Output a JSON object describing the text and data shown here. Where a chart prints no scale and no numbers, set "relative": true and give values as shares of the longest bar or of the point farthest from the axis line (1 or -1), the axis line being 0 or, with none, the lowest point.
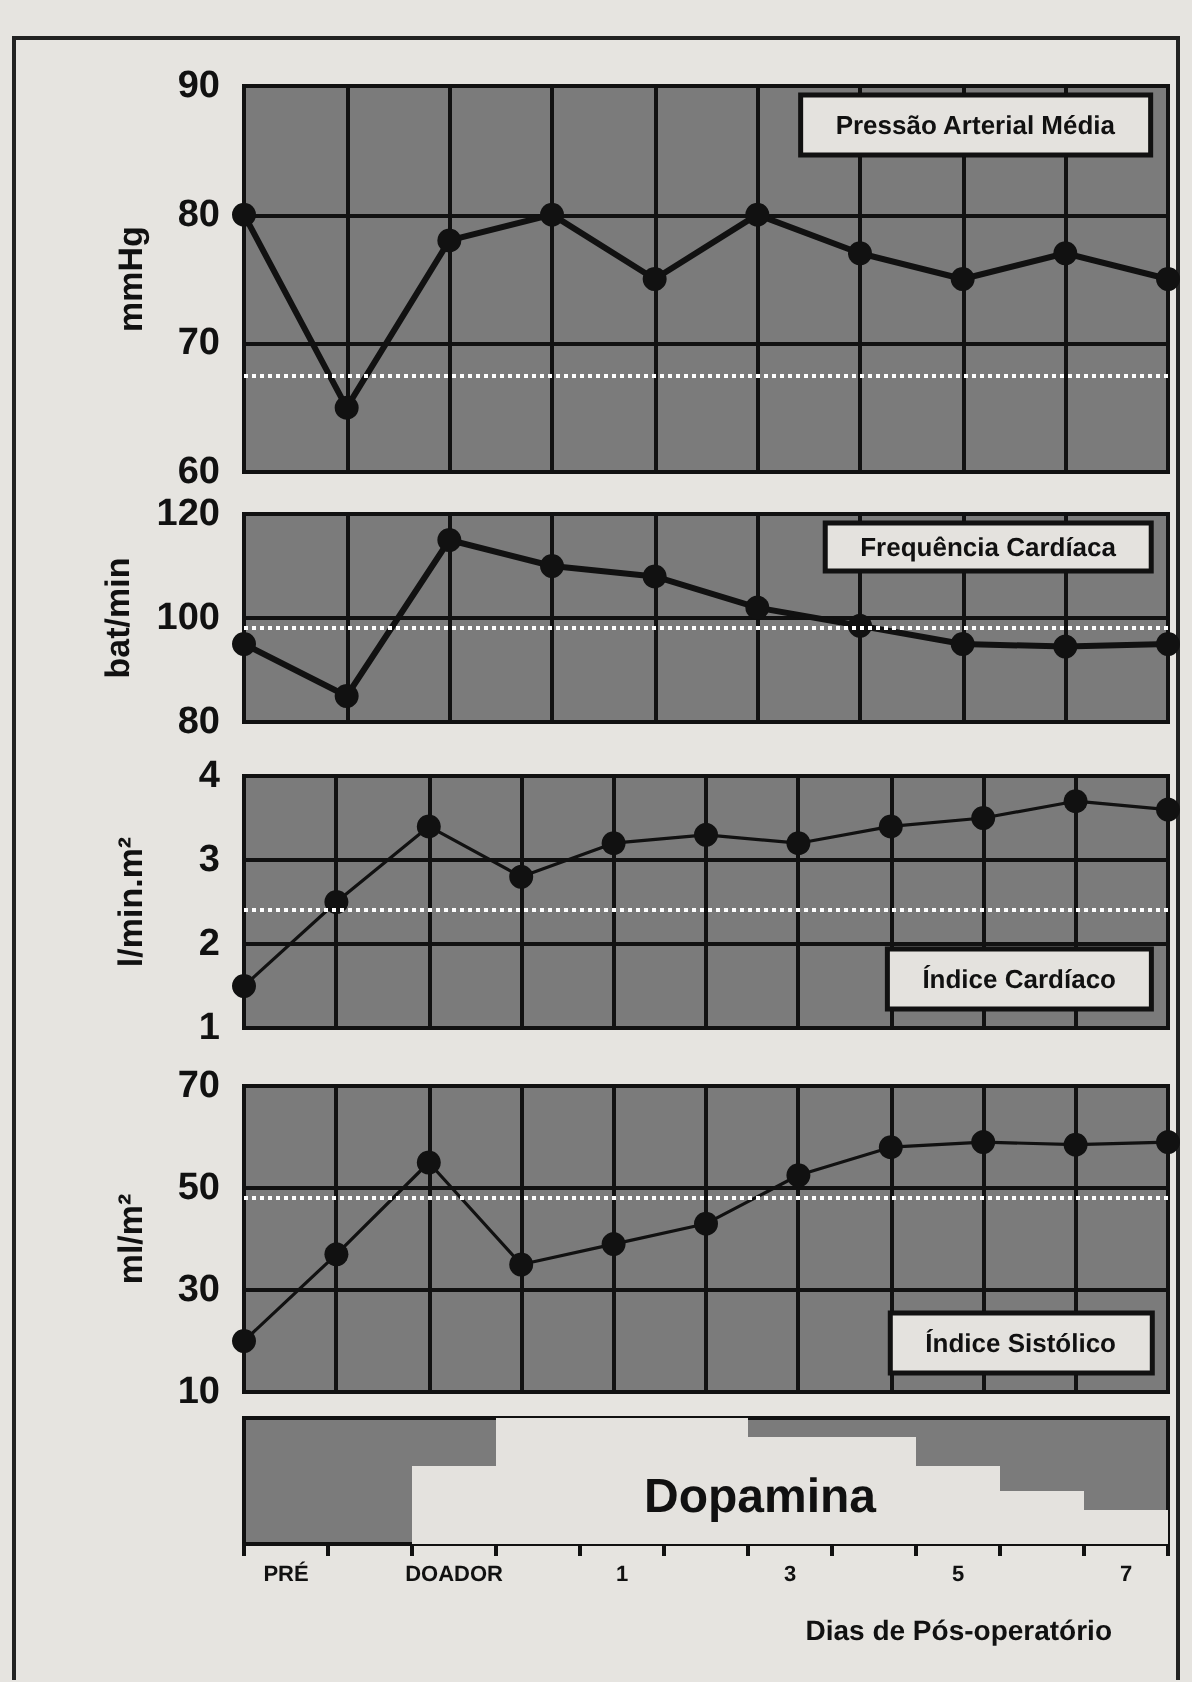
{
  "chart_data": [
    {
      "type": "line",
      "title": "Pressão Arterial Média",
      "ylabel": "mmHg",
      "categories": [
        null,
        null,
        null,
        null,
        null,
        null,
        null,
        null,
        null,
        null
      ],
      "series": [
        {
          "color": "#111111",
          "values": [
            80,
            65,
            78,
            80,
            75,
            80,
            77,
            75,
            77,
            75
          ]
        }
      ],
      "ylim": [
        60,
        90
      ],
      "yticks": [
        60,
        70,
        80,
        90
      ],
      "grid": true,
      "tick_labels": "y",
      "marker": "circle",
      "line_style": "solid",
      "ref_lines": [
        {
          "axis": "y",
          "value": 67.5,
          "label": null,
          "color": "#ffffff",
          "line_style": "dotted"
        }
      ]
    },
    {
      "type": "line",
      "title": "Frequência Cardíaca",
      "ylabel": "bat/min",
      "categories": [
        null,
        null,
        null,
        null,
        null,
        null,
        null,
        null,
        null,
        null
      ],
      "series": [
        {
          "color": "#111111",
          "values": [
            95,
            85,
            115,
            110,
            108,
            102,
            98.5,
            95,
            94.5,
            95
          ]
        }
      ],
      "ylim": [
        80,
        120
      ],
      "yticks": [
        80,
        100,
        120
      ],
      "grid": true,
      "tick_labels": "y",
      "marker": "circle",
      "line_style": "solid",
      "ref_lines": [
        {
          "axis": "y",
          "value": 98,
          "label": null,
          "color": "#ffffff",
          "line_style": "dotted"
        }
      ]
    },
    {
      "type": "line",
      "title": "Índice Cardíaco",
      "ylabel": "l/min.m²",
      "categories": [
        null,
        null,
        null,
        null,
        null,
        null,
        null,
        null,
        null,
        null,
        null
      ],
      "series": [
        {
          "color": "#111111",
          "values": [
            1.5,
            2.5,
            3.4,
            2.8,
            3.2,
            3.3,
            3.2,
            3.4,
            3.5,
            3.7,
            3.6
          ]
        }
      ],
      "ylim": [
        1,
        4
      ],
      "yticks": [
        1,
        2,
        3,
        4
      ],
      "grid": true,
      "tick_labels": "y",
      "marker": "circle",
      "line_style": "solid",
      "ref_lines": [
        {
          "axis": "y",
          "value": 2.4,
          "label": null,
          "color": "#ffffff",
          "line_style": "dotted"
        }
      ]
    },
    {
      "type": "line",
      "title": "Índice Sistólico",
      "ylabel": "ml/m²",
      "categories": [
        null,
        null,
        null,
        null,
        null,
        null,
        null,
        null,
        null,
        null,
        null
      ],
      "series": [
        {
          "color": "#111111",
          "values": [
            20,
            37,
            55,
            35,
            39,
            43,
            52.5,
            58,
            59,
            58.5,
            59
          ]
        }
      ],
      "ylim": [
        10,
        70
      ],
      "yticks": [
        10,
        30,
        50,
        70
      ],
      "grid": true,
      "tick_labels": "y",
      "marker": "circle",
      "line_style": "solid",
      "ref_lines": [
        {
          "axis": "y",
          "value": 48,
          "label": null,
          "color": "#ffffff",
          "line_style": "dotted"
        }
      ]
    },
    {
      "type": "bar",
      "xlabel": "Dias de Pós-operatório",
      "annotations": [
        "Dopamina"
      ],
      "relative": true,
      "categories": [
        "PRÉ",
        null,
        "DOADOR",
        null,
        "1",
        null,
        "3",
        null,
        "5",
        null,
        "7"
      ],
      "series": [
        {
          "color": "#e4e2de",
          "values": [
            0,
            0,
            0.62,
            1,
            1,
            1,
            0.85,
            0.85,
            0.62,
            0.42,
            0.27
          ]
        }
      ]
    }
  ]
}
